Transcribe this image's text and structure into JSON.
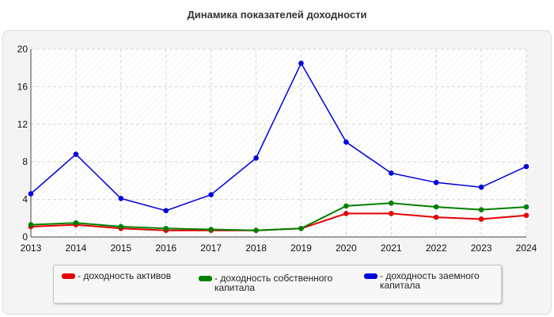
{
  "chart_data": {
    "type": "line",
    "title": "Динамика показателей доходности",
    "xlabel": "",
    "ylabel": "",
    "categories": [
      "2013",
      "2014",
      "2015",
      "2016",
      "2017",
      "2018",
      "2019",
      "2020",
      "2021",
      "2022",
      "2023",
      "2024"
    ],
    "ylim": [
      0,
      20
    ],
    "yticks": [
      0,
      4,
      8,
      12,
      16,
      20
    ],
    "grid": true,
    "legend_placement": "bottom",
    "series": [
      {
        "name": "- доходность активов",
        "color": "#e60000",
        "values": [
          1.1,
          1.3,
          0.9,
          0.7,
          0.7,
          0.7,
          0.9,
          2.5,
          2.5,
          2.1,
          1.9,
          2.3
        ]
      },
      {
        "name": "- доходность собственного капитала",
        "color": "#008000",
        "values": [
          1.3,
          1.5,
          1.1,
          0.9,
          0.8,
          0.7,
          0.9,
          3.3,
          3.6,
          3.2,
          2.9,
          3.2
        ]
      },
      {
        "name": "- доходность заемного капитала",
        "color": "#0000dd",
        "values": [
          4.6,
          8.8,
          4.1,
          2.8,
          4.5,
          8.4,
          18.5,
          10.1,
          6.8,
          5.8,
          5.3,
          7.5
        ]
      }
    ]
  }
}
